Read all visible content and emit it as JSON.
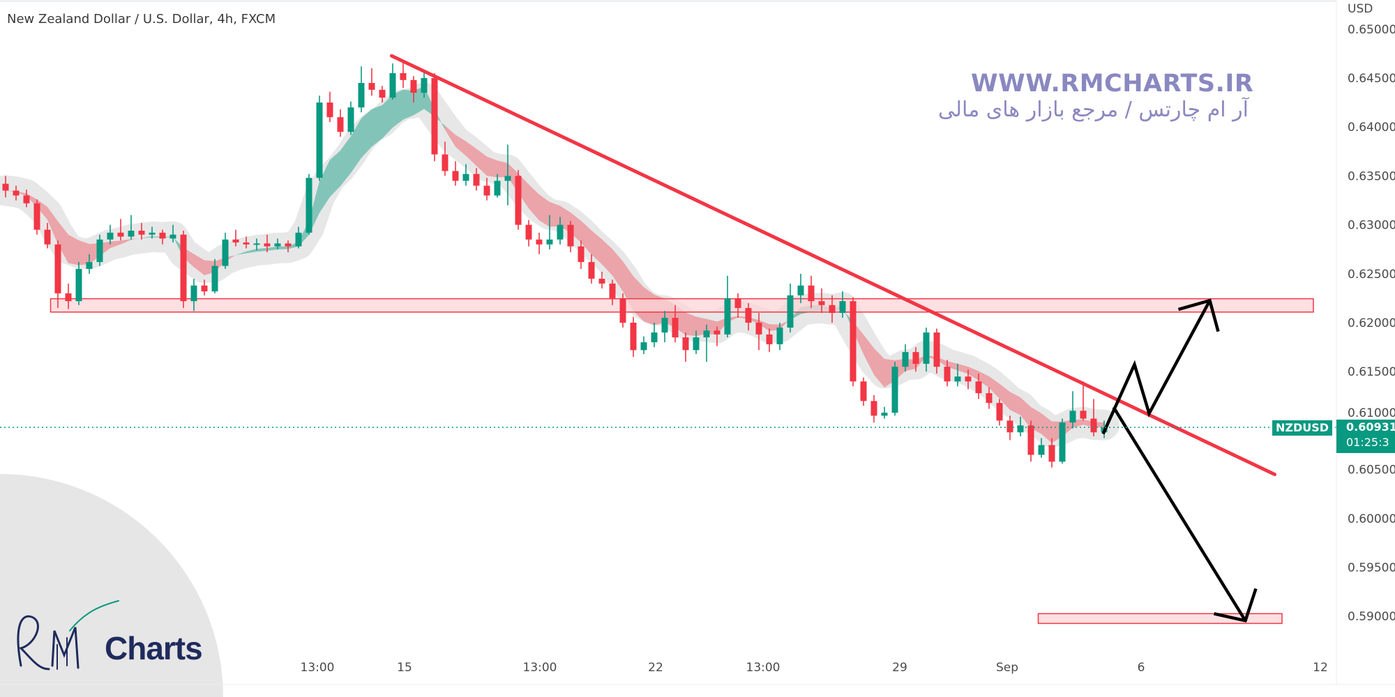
{
  "header": {
    "title": "New Zealand Dollar / U.S. Dollar, 4h, FXCM"
  },
  "watermark": {
    "site": "WWW.RMCHARTS.IR",
    "tagline": "آر ام چارتس / مرجع بازار های مالی"
  },
  "logo": {
    "text": "RM Charts"
  },
  "logo_word": "Charts",
  "price_axis": {
    "currency": "USD"
  },
  "last_price": {
    "symbol": "NZDUSD",
    "price": "0.60931",
    "countdown": "01:25:3"
  },
  "colors": {
    "up": "#089981",
    "down": "#f23645",
    "trendline": "#f23645",
    "zone_fill": "#fcd5d8",
    "zone_border": "#f23645",
    "projection": "#000000",
    "watermark": "#8a88c0"
  },
  "chart_data": {
    "type": "candlestick",
    "title": "New Zealand Dollar / U.S. Dollar, 4h, FXCM",
    "ylabel": "USD",
    "ylim": [
      0.5865,
      0.6505
    ],
    "y_ticks": [
      "0.65000",
      "0.64500",
      "0.64000",
      "0.63500",
      "0.63000",
      "0.62500",
      "0.62000",
      "0.61500",
      "0.61000",
      "0.60500",
      "0.60000",
      "0.59500",
      "0.59000"
    ],
    "x_ticks": [
      "13:00",
      "15",
      "13:00",
      "22",
      "13:00",
      "29",
      "Sep",
      "6",
      "12"
    ],
    "grid": false,
    "candles_ohlc": [
      [
        0.6342,
        0.635,
        0.6328,
        0.6335
      ],
      [
        0.6335,
        0.634,
        0.6325,
        0.633
      ],
      [
        0.633,
        0.6336,
        0.6318,
        0.6322
      ],
      [
        0.6322,
        0.6326,
        0.629,
        0.6295
      ],
      [
        0.6295,
        0.6302,
        0.6276,
        0.628
      ],
      [
        0.628,
        0.6284,
        0.6215,
        0.623
      ],
      [
        0.623,
        0.624,
        0.6214,
        0.6222
      ],
      [
        0.6222,
        0.6262,
        0.6218,
        0.6255
      ],
      [
        0.6255,
        0.627,
        0.625,
        0.6262
      ],
      [
        0.6262,
        0.629,
        0.6258,
        0.6285
      ],
      [
        0.6285,
        0.63,
        0.628,
        0.6292
      ],
      [
        0.6292,
        0.6306,
        0.6284,
        0.6288
      ],
      [
        0.6288,
        0.631,
        0.6285,
        0.6294
      ],
      [
        0.6294,
        0.6302,
        0.6285,
        0.629
      ],
      [
        0.629,
        0.6298,
        0.6286,
        0.6292
      ],
      [
        0.6292,
        0.6295,
        0.628,
        0.6286
      ],
      [
        0.6286,
        0.63,
        0.6282,
        0.629
      ],
      [
        0.629,
        0.6294,
        0.6215,
        0.6222
      ],
      [
        0.6222,
        0.6245,
        0.6212,
        0.6238
      ],
      [
        0.6238,
        0.6244,
        0.6228,
        0.6232
      ],
      [
        0.6232,
        0.6265,
        0.623,
        0.6258
      ],
      [
        0.6258,
        0.6292,
        0.6255,
        0.6285
      ],
      [
        0.6285,
        0.6295,
        0.6278,
        0.6282
      ],
      [
        0.6282,
        0.6288,
        0.6276,
        0.628
      ],
      [
        0.628,
        0.6286,
        0.6274,
        0.6281
      ],
      [
        0.6281,
        0.629,
        0.6272,
        0.6278
      ],
      [
        0.6278,
        0.6286,
        0.6275,
        0.6281
      ],
      [
        0.6281,
        0.6284,
        0.6272,
        0.6278
      ],
      [
        0.6278,
        0.6298,
        0.6276,
        0.6292
      ],
      [
        0.6292,
        0.6352,
        0.629,
        0.6348
      ],
      [
        0.6348,
        0.6432,
        0.6345,
        0.6425
      ],
      [
        0.6425,
        0.6436,
        0.6405,
        0.641
      ],
      [
        0.641,
        0.6418,
        0.639,
        0.6395
      ],
      [
        0.6395,
        0.6426,
        0.6392,
        0.642
      ],
      [
        0.642,
        0.6462,
        0.6415,
        0.6445
      ],
      [
        0.6445,
        0.646,
        0.6432,
        0.6438
      ],
      [
        0.6438,
        0.6442,
        0.6425,
        0.643
      ],
      [
        0.643,
        0.6465,
        0.6428,
        0.6455
      ],
      [
        0.6455,
        0.6468,
        0.644,
        0.6448
      ],
      [
        0.6448,
        0.6452,
        0.6425,
        0.6435
      ],
      [
        0.6435,
        0.6456,
        0.643,
        0.645
      ],
      [
        0.645,
        0.6455,
        0.6365,
        0.6372
      ],
      [
        0.6372,
        0.6385,
        0.635,
        0.6355
      ],
      [
        0.6355,
        0.6365,
        0.634,
        0.6345
      ],
      [
        0.6345,
        0.6362,
        0.634,
        0.6352
      ],
      [
        0.6352,
        0.6358,
        0.6335,
        0.634
      ],
      [
        0.634,
        0.6348,
        0.6325,
        0.633
      ],
      [
        0.633,
        0.6352,
        0.6328,
        0.6345
      ],
      [
        0.6345,
        0.6382,
        0.632,
        0.635
      ],
      [
        0.635,
        0.6356,
        0.6295,
        0.63
      ],
      [
        0.63,
        0.6305,
        0.6278,
        0.6285
      ],
      [
        0.6285,
        0.6292,
        0.627,
        0.628
      ],
      [
        0.628,
        0.631,
        0.6275,
        0.6285
      ],
      [
        0.6285,
        0.6308,
        0.628,
        0.63
      ],
      [
        0.63,
        0.6304,
        0.6272,
        0.6278
      ],
      [
        0.6278,
        0.6284,
        0.6255,
        0.6262
      ],
      [
        0.6262,
        0.627,
        0.624,
        0.6245
      ],
      [
        0.6245,
        0.6252,
        0.6235,
        0.624
      ],
      [
        0.624,
        0.6244,
        0.6218,
        0.6225
      ],
      [
        0.6225,
        0.623,
        0.6195,
        0.62
      ],
      [
        0.62,
        0.6206,
        0.6165,
        0.6172
      ],
      [
        0.6172,
        0.6186,
        0.6168,
        0.618
      ],
      [
        0.618,
        0.62,
        0.6175,
        0.619
      ],
      [
        0.619,
        0.6212,
        0.618,
        0.6205
      ],
      [
        0.6205,
        0.6218,
        0.618,
        0.6185
      ],
      [
        0.6185,
        0.619,
        0.616,
        0.6172
      ],
      [
        0.6172,
        0.6192,
        0.6168,
        0.6185
      ],
      [
        0.6185,
        0.6198,
        0.616,
        0.6192
      ],
      [
        0.6192,
        0.6196,
        0.6176,
        0.6188
      ],
      [
        0.6188,
        0.6248,
        0.6185,
        0.6225
      ],
      [
        0.6225,
        0.623,
        0.6205,
        0.6215
      ],
      [
        0.6215,
        0.622,
        0.6192,
        0.62
      ],
      [
        0.62,
        0.621,
        0.6172,
        0.6188
      ],
      [
        0.6188,
        0.6194,
        0.617,
        0.6178
      ],
      [
        0.6178,
        0.62,
        0.6172,
        0.6195
      ],
      [
        0.6195,
        0.624,
        0.619,
        0.6228
      ],
      [
        0.6228,
        0.625,
        0.622,
        0.6238
      ],
      [
        0.6238,
        0.6248,
        0.6215,
        0.6222
      ],
      [
        0.6222,
        0.6235,
        0.621,
        0.6218
      ],
      [
        0.6218,
        0.6228,
        0.62,
        0.621
      ],
      [
        0.621,
        0.6232,
        0.6205,
        0.6222
      ],
      [
        0.6222,
        0.6226,
        0.6135,
        0.614
      ],
      [
        0.614,
        0.6144,
        0.6115,
        0.612
      ],
      [
        0.612,
        0.6126,
        0.6098,
        0.6105
      ],
      [
        0.6105,
        0.6114,
        0.6102,
        0.6108
      ],
      [
        0.6108,
        0.616,
        0.6105,
        0.6155
      ],
      [
        0.6155,
        0.6178,
        0.615,
        0.617
      ],
      [
        0.617,
        0.6175,
        0.615,
        0.6158
      ],
      [
        0.6158,
        0.6195,
        0.615,
        0.619
      ],
      [
        0.619,
        0.6194,
        0.6148,
        0.6155
      ],
      [
        0.6155,
        0.6162,
        0.6135,
        0.614
      ],
      [
        0.614,
        0.6158,
        0.6135,
        0.6145
      ],
      [
        0.6145,
        0.6152,
        0.6132,
        0.614
      ],
      [
        0.614,
        0.6148,
        0.6122,
        0.6128
      ],
      [
        0.6128,
        0.6134,
        0.6112,
        0.6118
      ],
      [
        0.6118,
        0.6122,
        0.6095,
        0.61
      ],
      [
        0.61,
        0.6105,
        0.608,
        0.6088
      ],
      [
        0.6088,
        0.6104,
        0.6084,
        0.6095
      ],
      [
        0.6095,
        0.61,
        0.6058,
        0.6065
      ],
      [
        0.6065,
        0.6082,
        0.6062,
        0.6075
      ],
      [
        0.6075,
        0.6082,
        0.6052,
        0.6058
      ],
      [
        0.6058,
        0.6102,
        0.6056,
        0.6098
      ],
      [
        0.6098,
        0.613,
        0.6092,
        0.611
      ],
      [
        0.611,
        0.614,
        0.61,
        0.6102
      ],
      [
        0.6102,
        0.6122,
        0.6084,
        0.6088
      ],
      [
        0.6088,
        0.61,
        0.6082,
        0.6093
      ]
    ],
    "last_price": 0.60931,
    "drawings": {
      "trendline": {
        "from": [
          36.9,
          0.64727
        ],
        "to": [
          121.3,
          0.6045
        ]
      },
      "resistance_zone": {
        "from_bar": 4.3,
        "to_bar": 125,
        "price_top": 0.62245,
        "price_bottom": 0.62109
      },
      "target_zone": {
        "from_bar": 98.7,
        "to_bar": 122,
        "price_top": 0.59027,
        "price_bottom": 0.58927
      },
      "bullish_projection": {
        "path": [
          [
            104.9,
            0.60864
          ],
          [
            107.9,
            0.61573
          ],
          [
            109.3,
            0.61073
          ],
          [
            115.1,
            0.62227
          ]
        ],
        "arrowhead": [
          [
            112.1,
            0.62136
          ],
          [
            115.1,
            0.62227
          ],
          [
            115.9,
            0.6191
          ]
        ]
      },
      "bearish_projection": {
        "path": [
          [
            105.9,
            0.61136
          ],
          [
            118.5,
            0.58955
          ]
        ],
        "arrowhead": [
          [
            115.5,
            0.59027
          ],
          [
            118.5,
            0.58955
          ],
          [
            119.5,
            0.59282
          ]
        ]
      }
    }
  }
}
